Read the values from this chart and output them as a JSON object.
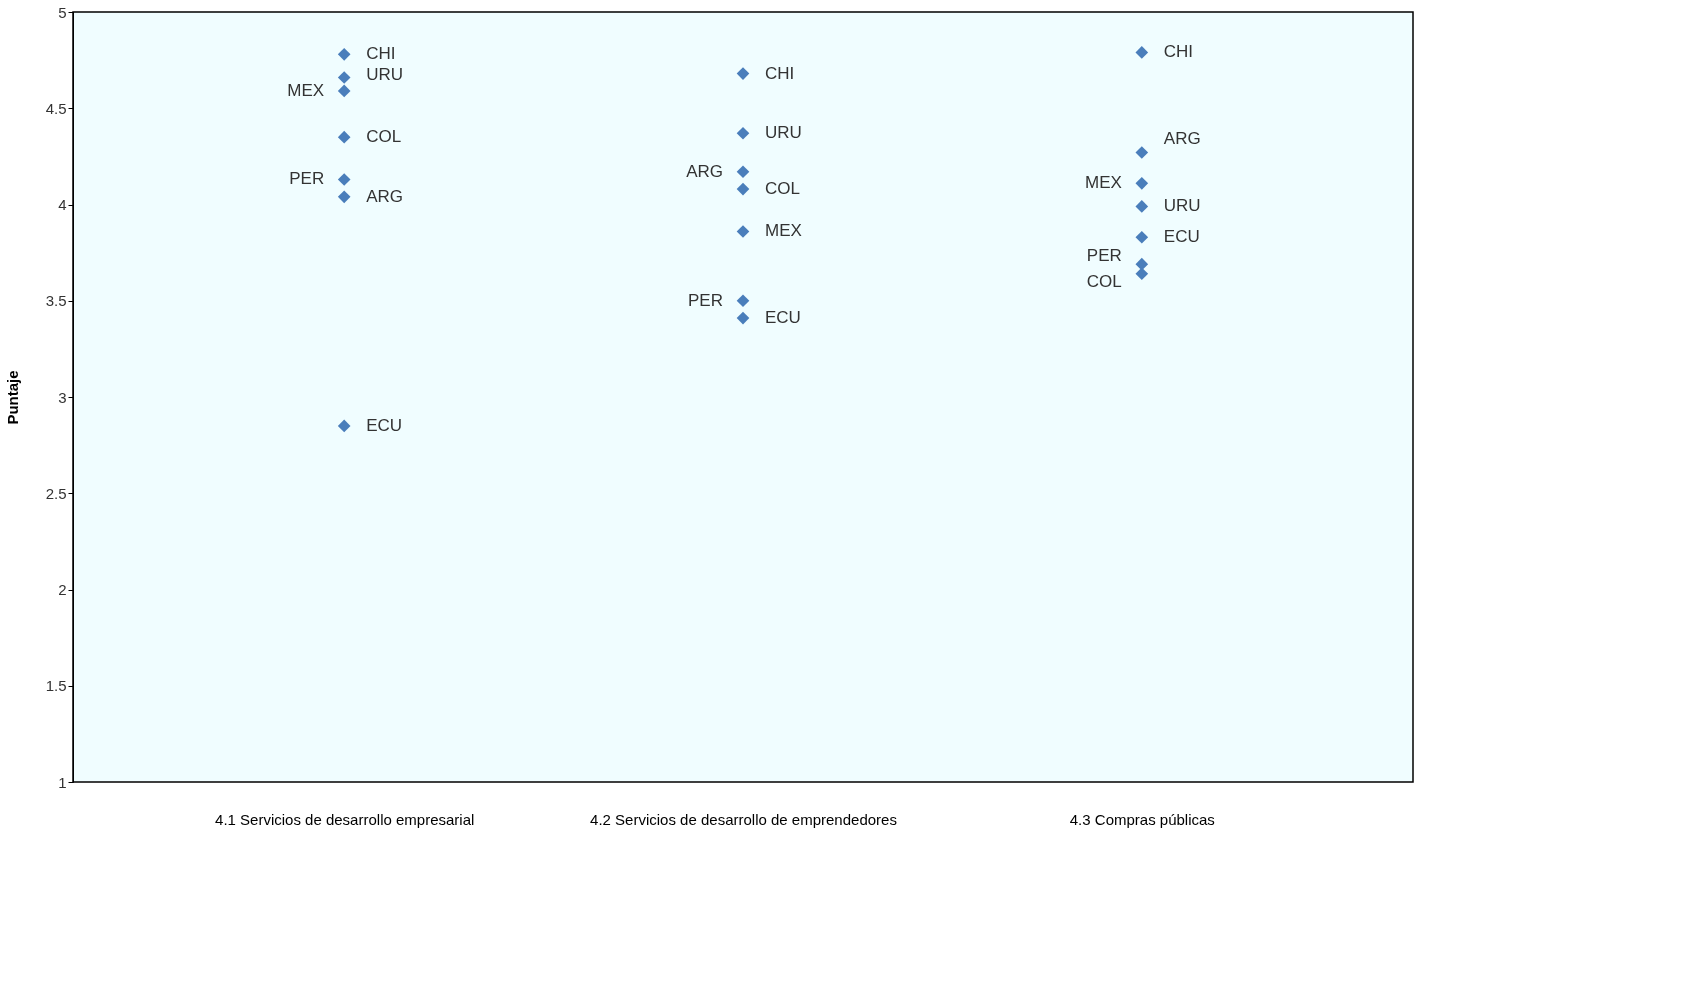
{
  "chart_data": {
    "type": "scatter",
    "ylabel": "Puntaje",
    "categories": [
      "4.1 Servicios de desarrollo empresarial",
      "4.2 Servicios de desarrollo de emprendedores",
      "4.3 Compras públicas"
    ],
    "ylim": [
      1,
      5
    ],
    "yticks": [
      1,
      1.5,
      2,
      2.5,
      3,
      3.5,
      4,
      4.5,
      5
    ],
    "grid": false,
    "legend": false,
    "marker": "diamond",
    "series": [
      {
        "name": "CHI",
        "color": "#4a7ebb",
        "values": [
          4.78,
          4.68,
          4.79
        ]
      },
      {
        "name": "URU",
        "color": "#4a7ebb",
        "values": [
          4.66,
          4.37,
          3.99
        ]
      },
      {
        "name": "MEX",
        "color": "#4a7ebb",
        "values": [
          4.59,
          3.86,
          4.11
        ]
      },
      {
        "name": "COL",
        "color": "#4a7ebb",
        "values": [
          4.35,
          4.08,
          3.64
        ]
      },
      {
        "name": "PER",
        "color": "#4a7ebb",
        "values": [
          4.13,
          3.5,
          3.69
        ]
      },
      {
        "name": "ARG",
        "color": "#4a7ebb",
        "values": [
          4.04,
          4.17,
          4.27
        ]
      },
      {
        "name": "ECU",
        "color": "#4a7ebb",
        "values": [
          2.85,
          3.41,
          3.83
        ]
      }
    ]
  }
}
